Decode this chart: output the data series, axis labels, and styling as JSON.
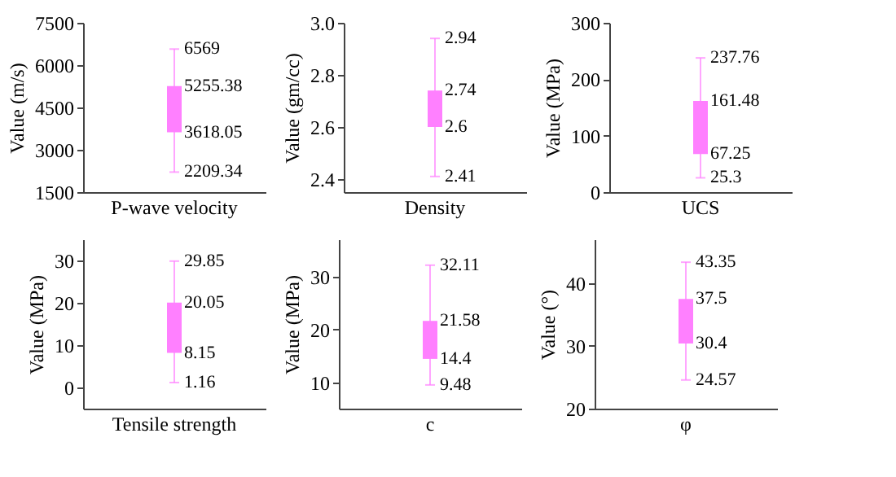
{
  "chart_data": [
    {
      "type": "box",
      "categories": [
        "P-wave velocity"
      ],
      "ylabel": "Value (m/s)",
      "ylim": [
        1500,
        7500
      ],
      "yticks": [
        1500,
        3000,
        4500,
        6000,
        7500
      ],
      "annotations": [
        {
          "text": "2209.34",
          "x": "P-wave velocity",
          "y": 2209.34
        },
        {
          "text": "3618.05",
          "x": "P-wave velocity",
          "y": 3618.05
        },
        {
          "text": "5255.38",
          "x": "P-wave velocity",
          "y": 5255.38
        },
        {
          "text": "6569",
          "x": "P-wave velocity",
          "y": 6569
        }
      ],
      "series": [
        {
          "color": "#ff80ff",
          "boxes": [
            {
              "low": 2209.34,
              "q1": 3618.05,
              "q3": 5255.38,
              "high": 6569
            }
          ]
        }
      ]
    },
    {
      "type": "box",
      "categories": [
        "Density"
      ],
      "ylabel": "Value (gm/cc)",
      "ylim": [
        2.35,
        3.0
      ],
      "yticks": [
        2.4,
        2.6,
        2.8,
        {
          "value": 3.0,
          "label": "3.0"
        }
      ],
      "annotations": [
        {
          "text": "2.41",
          "x": "Density",
          "y": 2.41
        },
        {
          "text": "2.6",
          "x": "Density",
          "y": 2.6
        },
        {
          "text": "2.74",
          "x": "Density",
          "y": 2.74
        },
        {
          "text": "2.94",
          "x": "Density",
          "y": 2.94
        }
      ],
      "series": [
        {
          "color": "#ff80ff",
          "boxes": [
            {
              "low": 2.41,
              "q1": 2.6,
              "q3": 2.74,
              "high": 2.94
            }
          ]
        }
      ]
    },
    {
      "type": "box",
      "categories": [
        "UCS"
      ],
      "ylabel": "Value (MPa)",
      "ylim": [
        0,
        300
      ],
      "yticks": [
        0,
        100,
        200,
        300
      ],
      "annotations": [
        {
          "text": "25.3",
          "x": "UCS",
          "y": 25.3
        },
        {
          "text": "67.25",
          "x": "UCS",
          "y": 67.25
        },
        {
          "text": "161.48",
          "x": "UCS",
          "y": 161.48
        },
        {
          "text": "237.76",
          "x": "UCS",
          "y": 237.76
        }
      ],
      "series": [
        {
          "color": "#ff80ff",
          "boxes": [
            {
              "low": 25.3,
              "q1": 67.25,
              "q3": 161.48,
              "high": 237.76
            }
          ]
        }
      ]
    },
    {
      "type": "box",
      "categories": [
        "Tensile strength"
      ],
      "ylabel": "Value (MPa)",
      "ylim": [
        -5,
        35
      ],
      "yticks": [
        0,
        10,
        20,
        30
      ],
      "annotations": [
        {
          "text": "1.16",
          "x": "Tensile strength",
          "y": 1.16
        },
        {
          "text": "8.15",
          "x": "Tensile strength",
          "y": 8.15
        },
        {
          "text": "20.05",
          "x": "Tensile strength",
          "y": 20.05
        },
        {
          "text": "29.85",
          "x": "Tensile strength",
          "y": 29.85
        }
      ],
      "series": [
        {
          "color": "#ff80ff",
          "boxes": [
            {
              "low": 1.16,
              "q1": 8.15,
              "q3": 20.05,
              "high": 29.85
            }
          ]
        }
      ]
    },
    {
      "type": "box",
      "categories": [
        "c"
      ],
      "ylabel": "Value (MPa)",
      "ylim": [
        5,
        37
      ],
      "yticks": [
        10,
        20,
        30
      ],
      "annotations": [
        {
          "text": "9.48",
          "x": "c",
          "y": 9.48
        },
        {
          "text": "14.4",
          "x": "c",
          "y": 14.4
        },
        {
          "text": "21.58",
          "x": "c",
          "y": 21.58
        },
        {
          "text": "32.11",
          "x": "c",
          "y": 32.11
        }
      ],
      "series": [
        {
          "color": "#ff80ff",
          "boxes": [
            {
              "low": 9.48,
              "q1": 14.4,
              "q3": 21.58,
              "high": 32.11
            }
          ]
        }
      ]
    },
    {
      "type": "box",
      "categories": [
        "φ"
      ],
      "ylabel": "Value (°)",
      "ylim": [
        20,
        47
      ],
      "yticks": [
        20,
        30,
        40
      ],
      "annotations": [
        {
          "text": "24.57",
          "x": "φ",
          "y": 24.57
        },
        {
          "text": "30.4",
          "x": "φ",
          "y": 30.4
        },
        {
          "text": "37.5",
          "x": "φ",
          "y": 37.5
        },
        {
          "text": "43.35",
          "x": "φ",
          "y": 43.35
        }
      ],
      "series": [
        {
          "color": "#ff80ff",
          "boxes": [
            {
              "low": 24.57,
              "q1": 30.4,
              "q3": 37.5,
              "high": 43.35
            }
          ]
        }
      ]
    }
  ]
}
